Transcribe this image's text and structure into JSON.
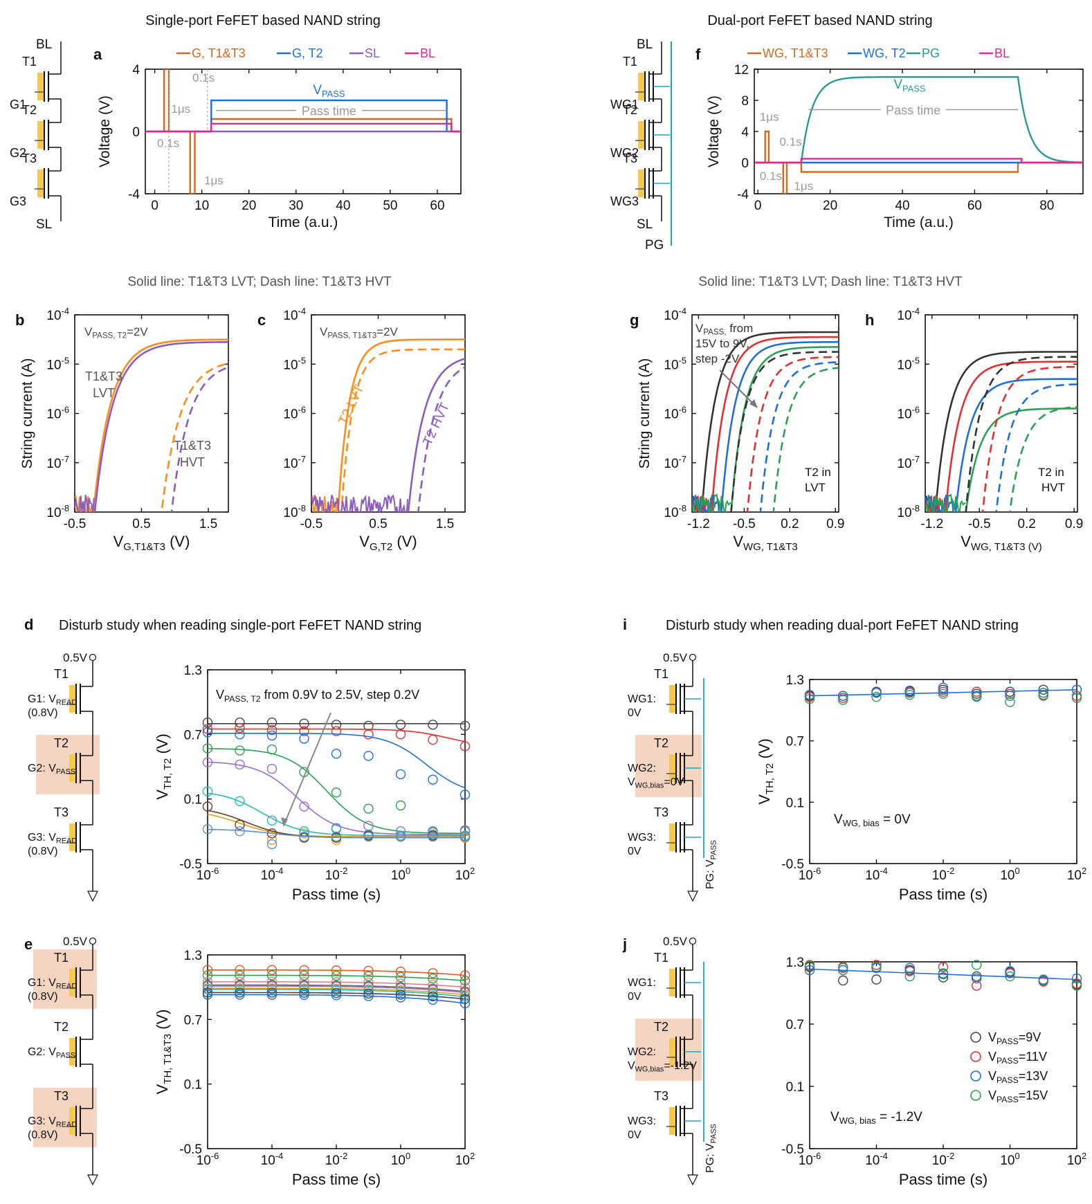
{
  "texts": {
    "title_left": "Single-port FeFET based NAND string",
    "title_right": "Dual-port FeFET based NAND string",
    "sub_left": "Solid line: T1&T3 LVT; Dash line: T1&T3 HVT",
    "sub_right": "Solid line: T1&T3 LVT; Dash line: T1&T3 HVT",
    "title_d": "Disturb study when reading single-port FeFET NAND string",
    "title_i": "Disturb study when reading dual-port FeFET NAND string"
  },
  "panel_labels": {
    "a": "a",
    "b": "b",
    "c": "c",
    "d": "d",
    "e": "e",
    "f": "f",
    "g": "g",
    "h": "h",
    "i": "i",
    "j": "j"
  },
  "schematics": {
    "BL": "BL",
    "SL": "SL",
    "PG": "PG",
    "T1": "T1",
    "T2": "T2",
    "T3": "T3",
    "G1": "G1",
    "G2": "G2",
    "G3": "G3",
    "WG1": "WG1",
    "WG2": "WG2",
    "WG3": "WG3",
    "v05": "0.5V",
    "g1_read": "G1: V",
    "g2_pass": "G2: V",
    "g3_read": "G3: V",
    "read_sub": "READ",
    "pass_sub": "PASS",
    "v08": "(0.8V)",
    "wg1": "WG1:",
    "wg2": "WG2:",
    "wg3": "WG3:",
    "zero": "0V",
    "vwgbias": "V",
    "wgbias_sub": "WG,bias",
    "eq0": "=0V",
    "eqm12": "=-1.2V",
    "pg": "PG: V"
  },
  "annotations": {
    "us": "1μs",
    "s01": "0.1s",
    "pass_time": "Pass time",
    "vpass": "V",
    "pass_sub": "PASS",
    "b_cond": "V",
    "b_cond_sub": "PASS, T2",
    "b_cond_eq": "=2V",
    "c_cond": "V",
    "c_cond_sub": "PASS, T1&T3",
    "c_cond_eq": "=2V",
    "lvt_b": "T1&T3",
    "lvt_b2": "LVT",
    "hvt_b": "T1&T3",
    "hvt_b2": "HVT",
    "t2_lvt": "T2 LVT",
    "t2_hvt": "T2 HVT",
    "g_cond1": "V",
    "g_cond1_sub": "PASS,",
    "g_cond1_rest": " from",
    "g_cond2": "15V to 9V,",
    "g_cond3": "step -2V",
    "t2in": "T2 in",
    "lvt": "LVT",
    "hvt": "HVT",
    "d_cond": "V",
    "d_cond_sub": "PASS, T2",
    "d_cond_rest": " from 0.9V to 2.5V, step 0.2V",
    "i_cond": "V",
    "i_cond_sub": "WG, bias",
    "i_cond_eq": " = 0V",
    "j_cond": "V",
    "j_cond_sub": "WG, bias",
    "j_cond_eq": " = -1.2V"
  },
  "legend_a": [
    "G, T1&T3",
    "G, T2",
    "SL",
    "BL"
  ],
  "legend_f": [
    "WG, T1&T3",
    "WG, T2",
    "PG",
    "BL"
  ],
  "legend_j": [
    {
      "main": "V",
      "sub": "PASS",
      "rest": "=9V"
    },
    {
      "main": "V",
      "sub": "PASS",
      "rest": "=11V"
    },
    {
      "main": "V",
      "sub": "PASS",
      "rest": "=13V"
    },
    {
      "main": "V",
      "sub": "PASS",
      "rest": "=15V"
    }
  ],
  "colors": {
    "orange": "#d2691e",
    "orange2": "#ff8c1a",
    "blue": "#1f6fd9",
    "purple": "#8a5cc0",
    "pink": "#e6258f",
    "teal": "#2a9a8e",
    "gray": "#999999",
    "cyan": "#1aa6c4",
    "shade": "#f5d5c2",
    "gold": "#f3c94e"
  },
  "chart_data": [
    {
      "id": "a",
      "type": "line",
      "title": "",
      "xlabel": "Time (a.u.)",
      "ylabel": "Voltage (V)",
      "xlim": [
        -2,
        65
      ],
      "ylim": [
        -4,
        4
      ],
      "xticks": [
        0,
        10,
        20,
        30,
        40,
        50,
        60
      ],
      "yticks": [
        -4,
        0,
        4
      ],
      "series": [
        {
          "name": "G, T1&T3",
          "color": "#d2691e",
          "x": [
            -2,
            2,
            2,
            3,
            3,
            7.5,
            7.5,
            8.5,
            8.5,
            12,
            12,
            63,
            63,
            65
          ],
          "y": [
            0,
            0,
            4,
            4,
            0,
            0,
            -4,
            -4,
            0,
            0,
            0.8,
            0.8,
            0,
            0
          ]
        },
        {
          "name": "G, T2",
          "color": "#1f6fd9",
          "x": [
            -2,
            12,
            12,
            62,
            62,
            65
          ],
          "y": [
            0,
            0,
            2,
            2,
            0,
            0
          ]
        },
        {
          "name": "SL",
          "color": "#8a5cc0",
          "x": [
            -2,
            65
          ],
          "y": [
            0,
            0
          ]
        },
        {
          "name": "BL",
          "color": "#e6258f",
          "x": [
            -2,
            12,
            12,
            63,
            63,
            65
          ],
          "y": [
            0,
            0,
            0.5,
            0.5,
            0,
            0
          ]
        }
      ]
    },
    {
      "id": "f",
      "type": "line",
      "title": "",
      "xlabel": "Time (a.u.)",
      "ylabel": "Voltage (V)",
      "xlim": [
        -1,
        90
      ],
      "ylim": [
        -4,
        12
      ],
      "xticks": [
        0,
        20,
        40,
        60,
        80
      ],
      "yticks": [
        -4,
        0,
        4,
        8,
        12
      ],
      "series": [
        {
          "name": "WG, T1&T3",
          "color": "#d2691e",
          "x": [
            -1,
            2,
            2,
            3,
            3,
            7,
            7,
            8,
            8,
            12,
            12,
            72,
            72,
            90
          ],
          "y": [
            0,
            0,
            4,
            4,
            0,
            0,
            -4,
            -4,
            0,
            0,
            -1.2,
            -1.2,
            0,
            0
          ]
        },
        {
          "name": "WG, T2",
          "color": "#1f6fd9",
          "x": [
            -1,
            90
          ],
          "y": [
            0,
            0
          ]
        },
        {
          "name": "PG",
          "color": "#2a9a8e",
          "rise_start": 12,
          "fall_start": 72,
          "level": 11,
          "tau_rise": 3,
          "tau_fall": 3
        },
        {
          "name": "BL",
          "color": "#e6258f",
          "x": [
            -1,
            12,
            12,
            73,
            73,
            90
          ],
          "y": [
            0,
            0,
            0.5,
            0.5,
            0,
            0
          ]
        }
      ]
    },
    {
      "id": "b",
      "type": "line",
      "xlabel": "V",
      "xlabel_sub": "G,T1&T3",
      "xlabel_rest": " (V)",
      "ylabel": "String current (A)",
      "yscale": "log",
      "xlim": [
        -0.5,
        1.8
      ],
      "ylim": [
        -8,
        -4
      ],
      "xticks": [
        -0.5,
        0.5,
        1.5
      ],
      "yticks": [
        -8,
        -7,
        -6,
        -5,
        -4
      ],
      "series": [
        {
          "color": "#ff8c1a",
          "dash": false,
          "v0": -0.22,
          "sat": -4.5,
          "k": 3.2
        },
        {
          "color": "#8a5cc0",
          "dash": false,
          "v0": -0.2,
          "sat": -4.55,
          "k": 3.1
        },
        {
          "color": "#ff8c1a",
          "dash": true,
          "v0": 0.8,
          "sat": -4.9,
          "k": 3.0
        },
        {
          "color": "#8a5cc0",
          "dash": true,
          "v0": 0.95,
          "sat": -4.95,
          "k": 3.2
        }
      ]
    },
    {
      "id": "c",
      "type": "line",
      "xlabel": "V",
      "xlabel_sub": "G,T2",
      "xlabel_rest": " (V)",
      "ylabel": "",
      "yscale": "log",
      "xlim": [
        -0.5,
        1.8
      ],
      "ylim": [
        -8,
        -4
      ],
      "xticks": [
        -0.5,
        0.5,
        1.5
      ],
      "yticks": [
        -8,
        -7,
        -6,
        -5,
        -4
      ],
      "series": [
        {
          "color": "#ff8c1a",
          "dash": false,
          "v0": -0.1,
          "sat": -4.5,
          "k": 5
        },
        {
          "color": "#ff8c1a",
          "dash": true,
          "v0": -0.05,
          "sat": -4.7,
          "k": 5
        },
        {
          "color": "#8a5cc0",
          "dash": false,
          "v0": 0.95,
          "sat": -4.8,
          "k": 3.5
        },
        {
          "color": "#8a5cc0",
          "dash": true,
          "v0": 1.1,
          "sat": -4.9,
          "k": 3.5
        }
      ]
    },
    {
      "id": "g",
      "type": "line",
      "xlabel": "V",
      "xlabel_sub": "WG, T1&T3",
      "xlabel_rest": "",
      "ylabel": "String current (A)",
      "yscale": "log",
      "xlim": [
        -1.3,
        0.95
      ],
      "ylim": [
        -8,
        -4
      ],
      "xticks": [
        -1.2,
        -0.5,
        0.2,
        0.9
      ],
      "yticks": [
        -8,
        -7,
        -6,
        -5,
        -4
      ],
      "series": [
        {
          "color": "#333333",
          "dash": false,
          "v0": -1.15,
          "sat": -4.35
        },
        {
          "color": "#e03030",
          "dash": false,
          "v0": -1.0,
          "sat": -4.45
        },
        {
          "color": "#1f6fd9",
          "dash": false,
          "v0": -0.85,
          "sat": -4.55
        },
        {
          "color": "#2aa050",
          "dash": false,
          "v0": -0.7,
          "sat": -4.65
        },
        {
          "color": "#333333",
          "dash": true,
          "v0": -0.7,
          "sat": -4.75
        },
        {
          "color": "#e03030",
          "dash": true,
          "v0": -0.45,
          "sat": -4.85
        },
        {
          "color": "#1f6fd9",
          "dash": true,
          "v0": -0.25,
          "sat": -4.95
        },
        {
          "color": "#2aa050",
          "dash": true,
          "v0": -0.05,
          "sat": -5.05
        }
      ]
    },
    {
      "id": "h",
      "type": "line",
      "xlabel": "V",
      "xlabel_sub": "WG, T1&T3 (V)",
      "xlabel_rest": "",
      "ylabel": "",
      "yscale": "log",
      "xlim": [
        -1.3,
        0.95
      ],
      "ylim": [
        -8,
        -4
      ],
      "xticks": [
        -1.2,
        -0.5,
        0.2,
        0.9
      ],
      "yticks": [
        -8,
        -7,
        -6,
        -5,
        -4
      ],
      "series": [
        {
          "color": "#333333",
          "dash": false,
          "v0": -1.15,
          "sat": -4.75
        },
        {
          "color": "#e03030",
          "dash": false,
          "v0": -1.0,
          "sat": -4.95
        },
        {
          "color": "#1f6fd9",
          "dash": false,
          "v0": -0.85,
          "sat": -5.3
        },
        {
          "color": "#2aa050",
          "dash": false,
          "v0": -0.7,
          "sat": -5.9
        },
        {
          "color": "#333333",
          "dash": true,
          "v0": -0.7,
          "sat": -4.85
        },
        {
          "color": "#e03030",
          "dash": true,
          "v0": -0.45,
          "sat": -5.05
        },
        {
          "color": "#1f6fd9",
          "dash": true,
          "v0": -0.25,
          "sat": -5.4
        },
        {
          "color": "#2aa050",
          "dash": true,
          "v0": -0.05,
          "sat": -5.85
        }
      ]
    },
    {
      "id": "d",
      "type": "scatter",
      "xlabel": "Pass time (s)",
      "ylabel": "V",
      "ylabel_sub": "TH, T2",
      "ylabel_rest": " (V)",
      "xscale": "log",
      "xlim": [
        -6,
        2
      ],
      "ylim": [
        -0.5,
        1.3
      ],
      "xticks": [
        -6,
        -4,
        -2,
        0,
        2
      ],
      "yticks": [
        -0.5,
        0.1,
        0.7,
        1.3
      ],
      "x": [
        -6,
        -5,
        -4,
        -3,
        -2,
        -1,
        0,
        1,
        2
      ],
      "series": [
        {
          "color": "#444444",
          "start": 0.8,
          "end": 0.79,
          "mid": 3,
          "pts": [
            0.81,
            0.81,
            0.81,
            0.8,
            0.79,
            0.78,
            0.79,
            0.79,
            0.78
          ]
        },
        {
          "color": "#e03030",
          "start": 0.75,
          "end": 0.58,
          "mid": 1.5,
          "pts": [
            0.75,
            0.76,
            0.74,
            0.73,
            0.73,
            0.7,
            0.7,
            0.65,
            0.59
          ]
        },
        {
          "color": "#1f6fd9",
          "start": 0.71,
          "end": 0.13,
          "mid": 0.8,
          "pts": [
            0.72,
            0.7,
            0.69,
            0.66,
            0.52,
            0.5,
            0.33,
            0.28,
            0.14
          ]
        },
        {
          "color": "#2aa050",
          "start": 0.57,
          "end": -0.22,
          "mid": -2.3,
          "pts": [
            0.57,
            0.55,
            0.56,
            0.35,
            0.16,
            0.01,
            0.04,
            -0.2,
            -0.2
          ]
        },
        {
          "color": "#9b6bd0",
          "start": 0.45,
          "end": -0.23,
          "mid": -3.2,
          "pts": [
            0.44,
            0.42,
            0.38,
            0.03,
            -0.17,
            -0.15,
            -0.2,
            -0.21,
            -0.19
          ]
        },
        {
          "color": "#e0a020",
          "start": 0.0,
          "end": -0.25,
          "mid": -5,
          "pts": [
            null,
            null,
            -0.28,
            -0.22,
            -0.28,
            -0.24,
            -0.25,
            -0.24,
            -0.26
          ]
        },
        {
          "color": "#22bbbb",
          "start": 0.18,
          "end": -0.24,
          "mid": -4.3,
          "pts": [
            0.17,
            0.08,
            -0.1,
            -0.2,
            -0.18,
            -0.23,
            -0.24,
            -0.23,
            -0.24
          ]
        },
        {
          "color": "#6b3a2a",
          "start": 0.03,
          "end": -0.26,
          "mid": -4.8,
          "pts": [
            0.03,
            -0.14,
            -0.22,
            -0.26,
            -0.26,
            -0.24,
            -0.25,
            -0.24,
            -0.25
          ]
        },
        {
          "color": "#5a8fcc",
          "start": -0.18,
          "end": -0.26,
          "mid": -4,
          "pts": [
            -0.18,
            -0.2,
            -0.32,
            -0.25,
            -0.25,
            -0.25,
            -0.25,
            -0.25,
            -0.25
          ]
        }
      ]
    },
    {
      "id": "e",
      "type": "scatter",
      "xlabel": "Pass time (s)",
      "ylabel": "V",
      "ylabel_sub": "TH, T1&T3",
      "ylabel_rest": " (V)",
      "xscale": "log",
      "xlim": [
        -6,
        2
      ],
      "ylim": [
        -0.5,
        1.3
      ],
      "xticks": [
        -6,
        -4,
        -2,
        0,
        2
      ],
      "yticks": [
        -0.5,
        0.1,
        0.7,
        1.3
      ],
      "x": [
        -6,
        -5,
        -4,
        -3,
        -2,
        -1,
        0,
        1,
        2
      ],
      "series": [
        {
          "color": "#e05a20",
          "flat": 1.16,
          "drop": 0.05
        },
        {
          "color": "#2aa050",
          "flat": 1.11,
          "drop": 0.05
        },
        {
          "color": "#e08080",
          "flat": 1.05,
          "drop": 0.05
        },
        {
          "color": "#666666",
          "flat": 1.02,
          "drop": 0.06
        },
        {
          "color": "#9b6bd0",
          "flat": 1.01,
          "drop": 0.06
        },
        {
          "color": "#e0a020",
          "flat": 0.99,
          "drop": 0.06
        },
        {
          "color": "#22bbbb",
          "flat": 0.98,
          "drop": 0.07
        },
        {
          "color": "#444444",
          "flat": 0.95,
          "drop": 0.06
        },
        {
          "color": "#1f6fd9",
          "flat": 0.93,
          "drop": 0.08
        }
      ]
    },
    {
      "id": "i",
      "type": "scatter",
      "xlabel": "Pass time (s)",
      "ylabel": "V",
      "ylabel_sub": "TH, T2",
      "ylabel_rest": " (V)",
      "xscale": "log",
      "xlim": [
        -6,
        2
      ],
      "ylim": [
        -0.5,
        1.3
      ],
      "xticks": [
        -6,
        -4,
        -2,
        0,
        2
      ],
      "yticks": [
        -0.5,
        0.1,
        0.7,
        1.3
      ],
      "x": [
        -6,
        -5,
        -4,
        -3,
        -2,
        -1,
        0,
        1,
        2
      ],
      "fit": {
        "color": "#1f6fd9",
        "y0": 1.14,
        "y1": 1.2
      },
      "series": [
        {
          "name": "V_PASS=9V",
          "color": "#444444",
          "pts": [
            1.14,
            1.14,
            1.18,
            1.19,
            1.2,
            1.16,
            1.18,
            1.2,
            1.2
          ]
        },
        {
          "name": "V_PASS=11V",
          "color": "#e03030",
          "pts": [
            1.13,
            1.12,
            1.17,
            1.17,
            1.18,
            1.18,
            1.16,
            1.15,
            1.14
          ]
        },
        {
          "name": "V_PASS=13V",
          "color": "#1f6fd9",
          "pts": [
            1.15,
            1.14,
            1.17,
            1.18,
            1.22,
            1.14,
            1.14,
            1.17,
            1.2
          ]
        },
        {
          "name": "V_PASS=15V",
          "color": "#2aa050",
          "pts": [
            1.11,
            1.1,
            1.13,
            1.15,
            1.16,
            1.13,
            1.08,
            1.14,
            1.12
          ]
        }
      ]
    },
    {
      "id": "j",
      "type": "scatter",
      "xlabel": "Pass time (s)",
      "ylabel": "",
      "xscale": "log",
      "xlim": [
        -6,
        2
      ],
      "ylim": [
        -0.5,
        1.3
      ],
      "xticks": [
        -6,
        -4,
        -2,
        0,
        2
      ],
      "yticks": [
        -0.5,
        0.1,
        0.7,
        1.3
      ],
      "x": [
        -6,
        -5,
        -4,
        -3,
        -2,
        -1,
        0,
        1,
        2
      ],
      "fit": {
        "color": "#1f6fd9",
        "y0": 1.23,
        "y1": 1.13
      },
      "series": [
        {
          "name": "V_PASS=9V",
          "color": "#444444",
          "pts": [
            1.25,
            1.12,
            1.13,
            1.22,
            1.15,
            1.16,
            1.2,
            1.12,
            1.08
          ]
        },
        {
          "name": "V_PASS=11V",
          "color": "#e03030",
          "pts": [
            1.26,
            1.25,
            1.27,
            1.21,
            1.25,
            1.07,
            1.19,
            1.11,
            1.09
          ]
        },
        {
          "name": "V_PASS=13V",
          "color": "#1f6fd9",
          "pts": [
            1.22,
            1.22,
            1.24,
            1.24,
            1.18,
            1.14,
            1.21,
            1.12,
            1.14
          ]
        },
        {
          "name": "V_PASS=15V",
          "color": "#2aa050",
          "pts": [
            1.27,
            1.24,
            1.25,
            1.16,
            1.19,
            1.27,
            1.16,
            1.13,
            1.07
          ]
        }
      ]
    }
  ]
}
